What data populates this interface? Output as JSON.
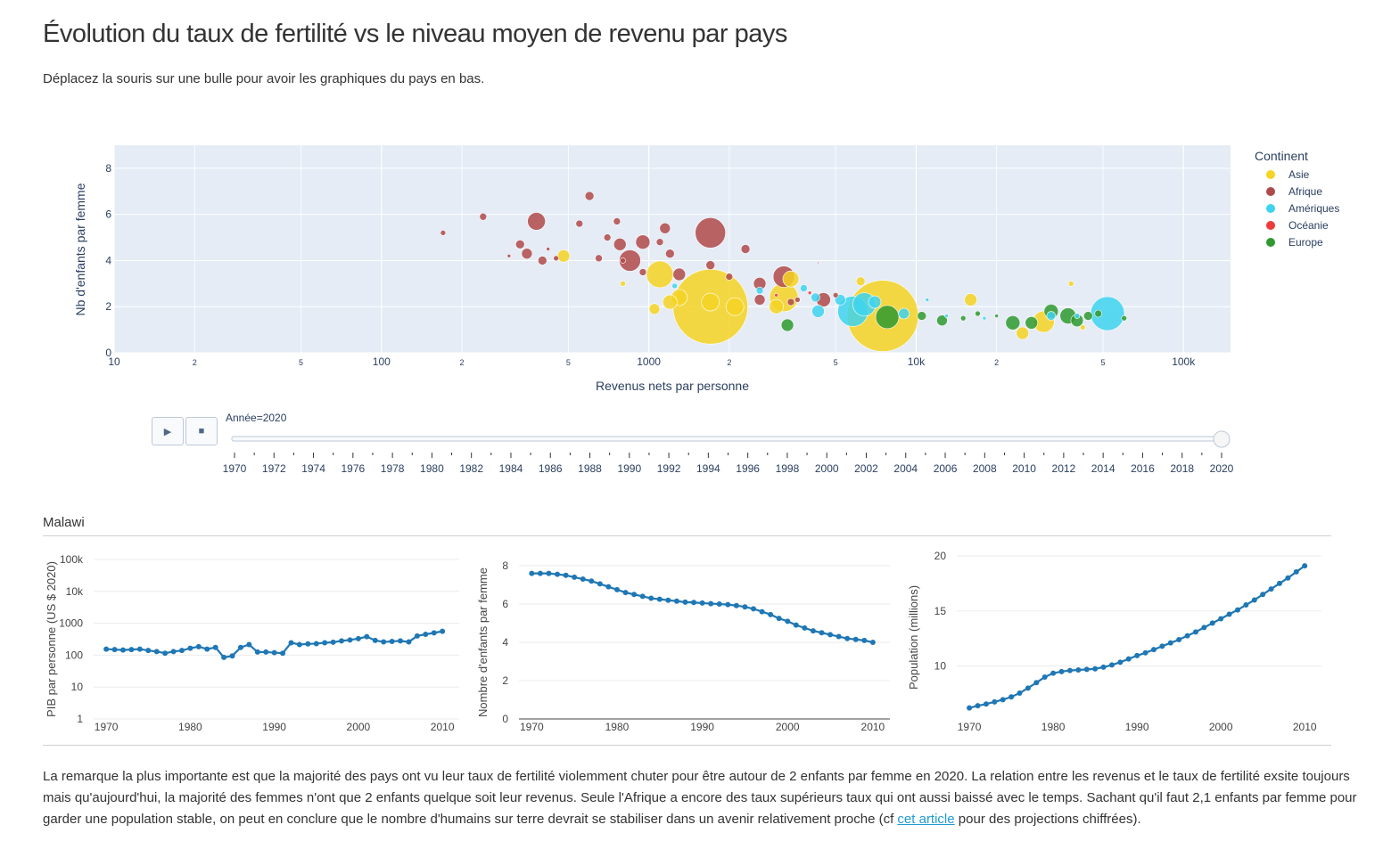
{
  "header": {
    "title": "Évolution du taux de fertilité vs le niveau moyen de revenu par pays",
    "subtitle": "Déplacez la souris sur une bulle pour avoir les graphiques du pays en bas."
  },
  "controls": {
    "play_icon": "play-icon",
    "stop_icon": "stop-icon",
    "slider_label": "Année=2020",
    "slider_years": [
      "1970",
      "1972",
      "1974",
      "1976",
      "1978",
      "1980",
      "1982",
      "1984",
      "1986",
      "1988",
      "1990",
      "1992",
      "1994",
      "1996",
      "1998",
      "2000",
      "2002",
      "2004",
      "2006",
      "2008",
      "2010",
      "2012",
      "2014",
      "2016",
      "2018",
      "2020"
    ],
    "selected_year": 2020
  },
  "detail": {
    "country": "Malawi"
  },
  "paragraph": {
    "text_before": "La remarque la plus importante est que la majorité des pays ont vu leur taux de fertilité violemment chuter pour être autour de 2 enfants par femme en 2020. La relation entre les revenus et le taux de fertilité exsite toujours mais qu'aujourd'hui, la majorité des femmes n'ont que 2 enfants quelque soit leur revenus. Seule l'Afrique a encore des taux supérieurs taux qui ont aussi baissé avec le temps. Sachant qu'il faut 2,1 enfants par femme pour garder une population stable, on peut en conclure que le nombre d'humains sur terre devrait se stabiliser dans un avenir relativement proche (cf ",
    "link_text": "cet article",
    "text_after": " pour des projections chiffrées)."
  },
  "colors": {
    "Asie": "#f5d423",
    "Afrique": "#b04a4a",
    "Ameriques": "#3ed4ee",
    "Oceanie": "#ef3b3b",
    "Europe": "#2f9a2f",
    "line": "#1f77b4"
  },
  "chart_data": [
    {
      "type": "scatter",
      "xlabel": "Revenus nets par personne",
      "ylabel": "Nb d'enfants par femme",
      "xscale": "log",
      "xlim": [
        10,
        150000
      ],
      "ylim": [
        0,
        9
      ],
      "xticks": [
        "10",
        "2",
        "5",
        "100",
        "2",
        "5",
        "1000",
        "2",
        "5",
        "10k",
        "2",
        "5",
        "100k"
      ],
      "yticks": [
        "0",
        "2",
        "4",
        "6",
        "8"
      ],
      "legend_title": "Continent",
      "legend": [
        "Asie",
        "Afrique",
        "Amériques",
        "Océanie",
        "Europe"
      ],
      "legend_placement": "top-right",
      "series": [
        {
          "name": "Asie",
          "points": [
            [
              1700,
              2.0,
              42
            ],
            [
              7500,
              1.6,
              40
            ],
            [
              1100,
              3.4,
              15
            ],
            [
              1050,
              1.9,
              6
            ],
            [
              1200,
              2.2,
              8
            ],
            [
              1300,
              2.4,
              9
            ],
            [
              1700,
              2.2,
              10
            ],
            [
              2100,
              2.0,
              10
            ],
            [
              3200,
              2.4,
              16
            ],
            [
              3400,
              3.2,
              9
            ],
            [
              3000,
              2.0,
              8
            ],
            [
              6200,
              3.1,
              5
            ],
            [
              16000,
              2.3,
              7
            ],
            [
              25000,
              0.85,
              7
            ],
            [
              30000,
              1.35,
              12
            ],
            [
              38000,
              3.0,
              3
            ],
            [
              42000,
              1.1,
              3
            ],
            [
              480,
              4.2,
              7
            ],
            [
              800,
              3.0,
              3
            ]
          ]
        },
        {
          "name": "Afrique",
          "points": [
            [
              170,
              5.2,
              3
            ],
            [
              240,
              5.9,
              4
            ],
            [
              300,
              4.2,
              2
            ],
            [
              330,
              4.7,
              5
            ],
            [
              350,
              4.3,
              6
            ],
            [
              380,
              5.7,
              10
            ],
            [
              400,
              4.0,
              5
            ],
            [
              420,
              4.5,
              2
            ],
            [
              450,
              4.1,
              3
            ],
            [
              550,
              5.6,
              4
            ],
            [
              600,
              6.8,
              5
            ],
            [
              650,
              4.1,
              4
            ],
            [
              700,
              5.0,
              4
            ],
            [
              760,
              5.7,
              4
            ],
            [
              780,
              4.7,
              7
            ],
            [
              800,
              4.0,
              3
            ],
            [
              850,
              4.0,
              12
            ],
            [
              950,
              4.8,
              8
            ],
            [
              950,
              3.5,
              4
            ],
            [
              1100,
              4.8,
              4
            ],
            [
              1150,
              5.4,
              6
            ],
            [
              1200,
              4.3,
              5
            ],
            [
              1300,
              3.4,
              7
            ],
            [
              1700,
              5.2,
              17
            ],
            [
              1700,
              3.8,
              5
            ],
            [
              2000,
              3.3,
              4
            ],
            [
              2300,
              4.5,
              5
            ],
            [
              2600,
              3.0,
              7
            ],
            [
              2600,
              2.3,
              6
            ],
            [
              3200,
              3.3,
              12
            ],
            [
              3400,
              2.2,
              4
            ],
            [
              3600,
              2.3,
              3
            ],
            [
              4500,
              2.3,
              8
            ],
            [
              5000,
              2.5,
              3
            ],
            [
              4300,
              3.9,
              1
            ]
          ]
        },
        {
          "name": "Amériques",
          "points": [
            [
              1250,
              2.9,
              3
            ],
            [
              2600,
              2.7,
              4
            ],
            [
              3800,
              2.8,
              4
            ],
            [
              4200,
              2.4,
              5
            ],
            [
              4300,
              1.8,
              7
            ],
            [
              5200,
              2.3,
              6
            ],
            [
              5800,
              1.8,
              17
            ],
            [
              6400,
              2.1,
              13
            ],
            [
              7000,
              2.2,
              7
            ],
            [
              9000,
              1.7,
              6
            ],
            [
              11000,
              2.3,
              2
            ],
            [
              13000,
              1.6,
              2
            ],
            [
              18000,
              1.5,
              2
            ],
            [
              32000,
              1.6,
              5
            ],
            [
              52000,
              1.7,
              19
            ],
            [
              40000,
              1.6,
              3
            ]
          ]
        },
        {
          "name": "Océanie",
          "points": [
            [
              3000,
              2.5,
              2
            ],
            [
              4000,
              2.6,
              2
            ]
          ]
        },
        {
          "name": "Europe",
          "points": [
            [
              3300,
              1.2,
              7
            ],
            [
              7800,
              1.55,
              13
            ],
            [
              10500,
              1.6,
              5
            ],
            [
              12500,
              1.4,
              6
            ],
            [
              15000,
              1.5,
              3
            ],
            [
              17000,
              1.7,
              3
            ],
            [
              20000,
              1.6,
              2
            ],
            [
              23000,
              1.3,
              8
            ],
            [
              27000,
              1.3,
              7
            ],
            [
              32000,
              1.8,
              8
            ],
            [
              37000,
              1.6,
              9
            ],
            [
              40000,
              1.4,
              7
            ],
            [
              44000,
              1.6,
              5
            ],
            [
              48000,
              1.7,
              4
            ],
            [
              60000,
              1.5,
              3
            ]
          ]
        }
      ]
    },
    {
      "type": "line",
      "ylabel": "PIB par personne (US $ 2020)",
      "yscale": "log",
      "yticks": [
        "1",
        "10",
        "100",
        "1000",
        "10k",
        "100k"
      ],
      "xticks": [
        "1970",
        "1980",
        "1990",
        "2000",
        "2010"
      ],
      "x": [
        1970,
        1971,
        1972,
        1973,
        1974,
        1975,
        1976,
        1977,
        1978,
        1979,
        1980,
        1981,
        1982,
        1983,
        1984,
        1985,
        1986,
        1987,
        1988,
        1989,
        1990,
        1991,
        1992,
        1993,
        1994,
        1995,
        1996,
        1997,
        1998,
        1999,
        2000,
        2001,
        2002,
        2003,
        2004,
        2005,
        2006,
        2007,
        2008,
        2009,
        2010
      ],
      "values": [
        155,
        150,
        145,
        150,
        155,
        140,
        130,
        115,
        130,
        140,
        165,
        185,
        155,
        175,
        85,
        95,
        175,
        215,
        125,
        125,
        120,
        115,
        245,
        215,
        225,
        230,
        245,
        255,
        280,
        300,
        330,
        380,
        290,
        260,
        270,
        280,
        260,
        400,
        450,
        500,
        560
      ]
    },
    {
      "type": "line",
      "ylabel": "Nombre d'enfants par femme",
      "yticks": [
        "0",
        "2",
        "4",
        "6",
        "8"
      ],
      "xticks": [
        "1970",
        "1980",
        "1990",
        "2000",
        "2010"
      ],
      "x": [
        1970,
        1971,
        1972,
        1973,
        1974,
        1975,
        1976,
        1977,
        1978,
        1979,
        1980,
        1981,
        1982,
        1983,
        1984,
        1985,
        1986,
        1987,
        1988,
        1989,
        1990,
        1991,
        1992,
        1993,
        1994,
        1995,
        1996,
        1997,
        1998,
        1999,
        2000,
        2001,
        2002,
        2003,
        2004,
        2005,
        2006,
        2007,
        2008,
        2009,
        2010
      ],
      "values": [
        7.6,
        7.6,
        7.6,
        7.55,
        7.5,
        7.4,
        7.3,
        7.2,
        7.05,
        6.9,
        6.75,
        6.6,
        6.5,
        6.4,
        6.3,
        6.25,
        6.2,
        6.15,
        6.1,
        6.08,
        6.05,
        6.02,
        6.0,
        5.97,
        5.92,
        5.85,
        5.75,
        5.6,
        5.45,
        5.25,
        5.1,
        4.9,
        4.75,
        4.6,
        4.5,
        4.4,
        4.3,
        4.2,
        4.15,
        4.1,
        4.0
      ]
    },
    {
      "type": "line",
      "ylabel": "Population (millions)",
      "yticks": [
        "10",
        "15",
        "20"
      ],
      "xticks": [
        "1970",
        "1980",
        "1990",
        "2000",
        "2010"
      ],
      "x": [
        1970,
        1971,
        1972,
        1973,
        1974,
        1975,
        1976,
        1977,
        1978,
        1979,
        1980,
        1981,
        1982,
        1983,
        1984,
        1985,
        1986,
        1987,
        1988,
        1989,
        1990,
        1991,
        1992,
        1993,
        1994,
        1995,
        1996,
        1997,
        1998,
        1999,
        2000,
        2001,
        2002,
        2003,
        2004,
        2005,
        2006,
        2007,
        2008,
        2009,
        2010
      ],
      "values": [
        6.2,
        6.4,
        6.55,
        6.75,
        6.95,
        7.2,
        7.55,
        8.0,
        8.5,
        9.0,
        9.35,
        9.5,
        9.6,
        9.65,
        9.7,
        9.75,
        9.9,
        10.1,
        10.35,
        10.65,
        10.95,
        11.2,
        11.5,
        11.8,
        12.1,
        12.4,
        12.75,
        13.1,
        13.5,
        13.9,
        14.3,
        14.7,
        15.1,
        15.55,
        16.0,
        16.5,
        17.0,
        17.5,
        18.0,
        18.55,
        19.1
      ]
    }
  ]
}
